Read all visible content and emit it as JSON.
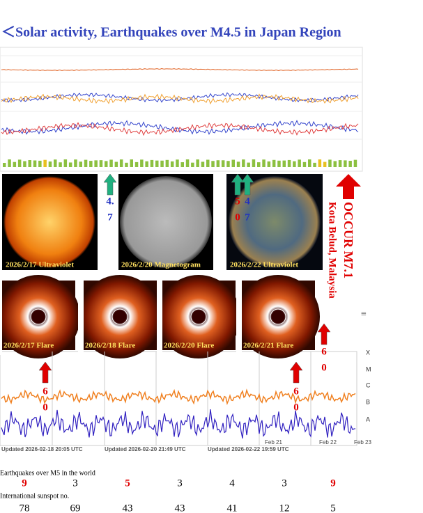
{
  "header": {
    "title": "＜Solar activity, Earthquakes over M4.5 in Japan Region"
  },
  "images": [
    {
      "caption": "2026/2/17 Ultraviolet"
    },
    {
      "caption": "2026/2/20 Magnetogram"
    },
    {
      "caption": "2026/2/22 Ultraviolet"
    }
  ],
  "flares": [
    {
      "caption": "2026/2/17 Flare"
    },
    {
      "caption": "2026/2/18 Flare"
    },
    {
      "caption": "2026/2/20 Flare"
    },
    {
      "caption": "2026/2/21 Flare"
    }
  ],
  "arrows": [
    {
      "color": "green",
      "parts": [
        "4.",
        "7"
      ],
      "part_colors": [
        "blue",
        "blue"
      ]
    },
    {
      "color": "green",
      "parts": [
        "5",
        "0"
      ],
      "part_colors": [
        "red",
        "red"
      ]
    },
    {
      "color": "green",
      "parts": [
        "4",
        "7"
      ],
      "part_colors": [
        "blue",
        "blue"
      ]
    },
    {
      "color": "red",
      "parts": [
        "6",
        "0"
      ],
      "part_colors": [
        "red",
        "red"
      ]
    },
    {
      "color": "red",
      "parts": [
        "6",
        "0"
      ],
      "part_colors": [
        "red",
        "red"
      ]
    },
    {
      "color": "red",
      "parts": [
        "6",
        "0"
      ],
      "part_colors": [
        "red",
        "red"
      ]
    }
  ],
  "occur": {
    "text": "OCCUR M7.1",
    "place": "Kota Belud, Malaysia"
  },
  "xray": {
    "classes": [
      "X",
      "M",
      "C",
      "B",
      "A"
    ],
    "dates": [
      "Feb 21",
      "Feb 22",
      "Feb 23"
    ],
    "updated": [
      "Updated 2026-02-18 20:05 UTC",
      "Updated 2026-02-20 21:49 UTC",
      "Updated 2026-02-22 19:59 UTC"
    ]
  },
  "table": {
    "rows": [
      {
        "label": "Earthquakes over M5 in the world",
        "values": [
          9,
          3,
          5,
          3,
          4,
          3,
          9
        ],
        "colors": [
          "red",
          "black",
          "red",
          "black",
          "black",
          "black",
          "red"
        ]
      },
      {
        "label": "International sunspot no.",
        "values": [
          78,
          69,
          43,
          43,
          41,
          12,
          5
        ],
        "colors": [
          "black",
          "black",
          "black",
          "black",
          "black",
          "black",
          "black"
        ]
      }
    ]
  }
}
